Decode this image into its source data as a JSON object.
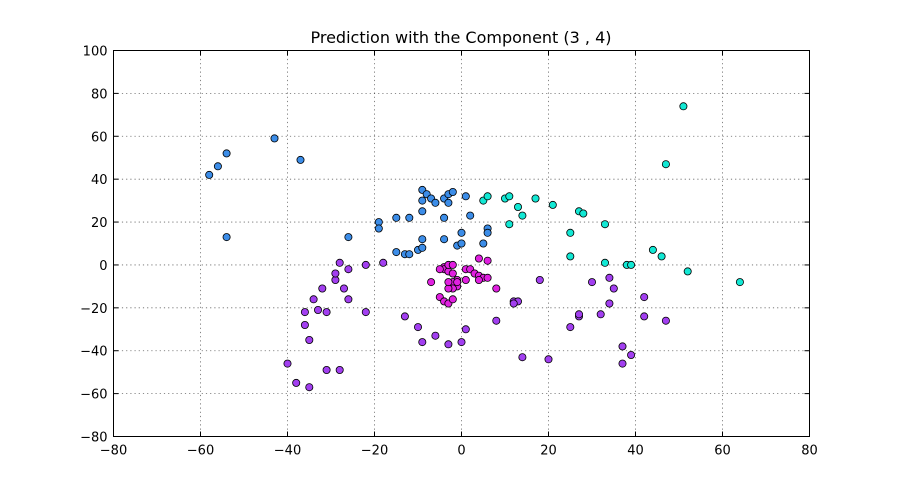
{
  "chart_data": {
    "type": "scatter",
    "title": "Prediction with the Component (3 , 4)",
    "xlabel": "",
    "ylabel": "",
    "xlim": [
      -80,
      80
    ],
    "ylim": [
      -80,
      100
    ],
    "xticks": [
      -80,
      -60,
      -40,
      -20,
      0,
      20,
      40,
      60,
      80
    ],
    "yticks": [
      -80,
      -60,
      -40,
      -20,
      0,
      20,
      40,
      60,
      80,
      100
    ],
    "xtick_labels": [
      "−80",
      "−60",
      "−40",
      "−20",
      "0",
      "20",
      "40",
      "60",
      "80"
    ],
    "ytick_labels": [
      "−80",
      "−60",
      "−40",
      "−20",
      "0",
      "20",
      "40",
      "60",
      "80",
      "100"
    ],
    "grid": true,
    "colors": {
      "blue": "#3c8de8",
      "cyan": "#12e8d4",
      "purple": "#a23ff0",
      "magenta": "#e020e0"
    },
    "series": [
      {
        "color_key": "blue",
        "points": [
          [
            -58,
            42
          ],
          [
            -56,
            46
          ],
          [
            -54,
            52
          ],
          [
            -54,
            13
          ],
          [
            -43,
            59
          ],
          [
            -37,
            49
          ],
          [
            -26,
            13
          ],
          [
            -19,
            20
          ],
          [
            -19,
            17
          ],
          [
            -15,
            22
          ],
          [
            -12,
            22
          ],
          [
            -15,
            6
          ],
          [
            -13,
            5
          ],
          [
            -12,
            5
          ],
          [
            -10,
            7
          ],
          [
            -9,
            12
          ],
          [
            -9,
            8
          ],
          [
            -9,
            35
          ],
          [
            -8,
            33
          ],
          [
            -9,
            30
          ],
          [
            -9,
            25
          ],
          [
            -7,
            31
          ],
          [
            -6,
            29
          ],
          [
            -4,
            31
          ],
          [
            -3,
            33
          ],
          [
            -2,
            34
          ],
          [
            -3,
            29
          ],
          [
            -4,
            22
          ],
          [
            -4,
            12
          ],
          [
            -1,
            9
          ],
          [
            0,
            10
          ],
          [
            0,
            15
          ],
          [
            1,
            32
          ],
          [
            2,
            23
          ],
          [
            5,
            10
          ],
          [
            6,
            17
          ],
          [
            6,
            15
          ]
        ]
      },
      {
        "color_key": "cyan",
        "points": [
          [
            5,
            30
          ],
          [
            6,
            32
          ],
          [
            10,
            31
          ],
          [
            11,
            32
          ],
          [
            11,
            19
          ],
          [
            13,
            27
          ],
          [
            14,
            23
          ],
          [
            17,
            31
          ],
          [
            21,
            28
          ],
          [
            25,
            15
          ],
          [
            25,
            4
          ],
          [
            27,
            25
          ],
          [
            28,
            24
          ],
          [
            33,
            19
          ],
          [
            33,
            1
          ],
          [
            38,
            0
          ],
          [
            39,
            0
          ],
          [
            44,
            7
          ],
          [
            46,
            4
          ],
          [
            47,
            47
          ],
          [
            51,
            74
          ],
          [
            52,
            -3
          ],
          [
            64,
            -8
          ]
        ]
      },
      {
        "color_key": "magenta",
        "points": [
          [
            4,
            3
          ],
          [
            6,
            2
          ],
          [
            1,
            -2
          ],
          [
            2,
            -2
          ],
          [
            3,
            -4
          ],
          [
            4,
            -5
          ],
          [
            5,
            -6
          ],
          [
            6,
            -6
          ],
          [
            4,
            -7
          ],
          [
            1,
            -7
          ],
          [
            -1,
            -7
          ],
          [
            -2,
            -8
          ],
          [
            -1,
            -10
          ],
          [
            -2,
            -11
          ],
          [
            -3,
            -11
          ],
          [
            -3,
            -8
          ],
          [
            -4,
            -1
          ],
          [
            -4,
            -2
          ],
          [
            -3,
            -3
          ],
          [
            -2,
            -4
          ],
          [
            -1,
            -8
          ],
          [
            -5,
            -2
          ],
          [
            -7,
            -8
          ],
          [
            -5,
            -15
          ],
          [
            -4,
            -17
          ],
          [
            -3,
            -18
          ],
          [
            -2,
            -16
          ],
          [
            -3,
            0
          ],
          [
            -2,
            0
          ],
          [
            8,
            -11
          ]
        ]
      },
      {
        "color_key": "purple",
        "points": [
          [
            -40,
            -46
          ],
          [
            -38,
            -55
          ],
          [
            -35,
            -57
          ],
          [
            -35,
            -35
          ],
          [
            -36,
            -28
          ],
          [
            -36,
            -22
          ],
          [
            -34,
            -16
          ],
          [
            -33,
            -21
          ],
          [
            -32,
            -11
          ],
          [
            -31,
            -22
          ],
          [
            -31,
            -49
          ],
          [
            -29,
            -7
          ],
          [
            -29,
            -4
          ],
          [
            -28,
            1
          ],
          [
            -27,
            -11
          ],
          [
            -26,
            -16
          ],
          [
            -26,
            -2
          ],
          [
            -28,
            -49
          ],
          [
            -22,
            0
          ],
          [
            -22,
            -22
          ],
          [
            -18,
            1
          ],
          [
            -13,
            -24
          ],
          [
            -10,
            -29
          ],
          [
            -9,
            -36
          ],
          [
            -6,
            -33
          ],
          [
            -3,
            -37
          ],
          [
            0,
            -36
          ],
          [
            1,
            -30
          ],
          [
            8,
            -26
          ],
          [
            12,
            -17
          ],
          [
            13,
            -17
          ],
          [
            12,
            -18
          ],
          [
            14,
            -43
          ],
          [
            18,
            -7
          ],
          [
            20,
            -44
          ],
          [
            25,
            -29
          ],
          [
            27,
            -24
          ],
          [
            27,
            -23
          ],
          [
            30,
            -8
          ],
          [
            32,
            -23
          ],
          [
            34,
            -18
          ],
          [
            34,
            -6
          ],
          [
            35,
            -11
          ],
          [
            37,
            -38
          ],
          [
            37,
            -46
          ],
          [
            39,
            -42
          ],
          [
            42,
            -15
          ],
          [
            42,
            -24
          ],
          [
            47,
            -26
          ]
        ]
      }
    ]
  }
}
